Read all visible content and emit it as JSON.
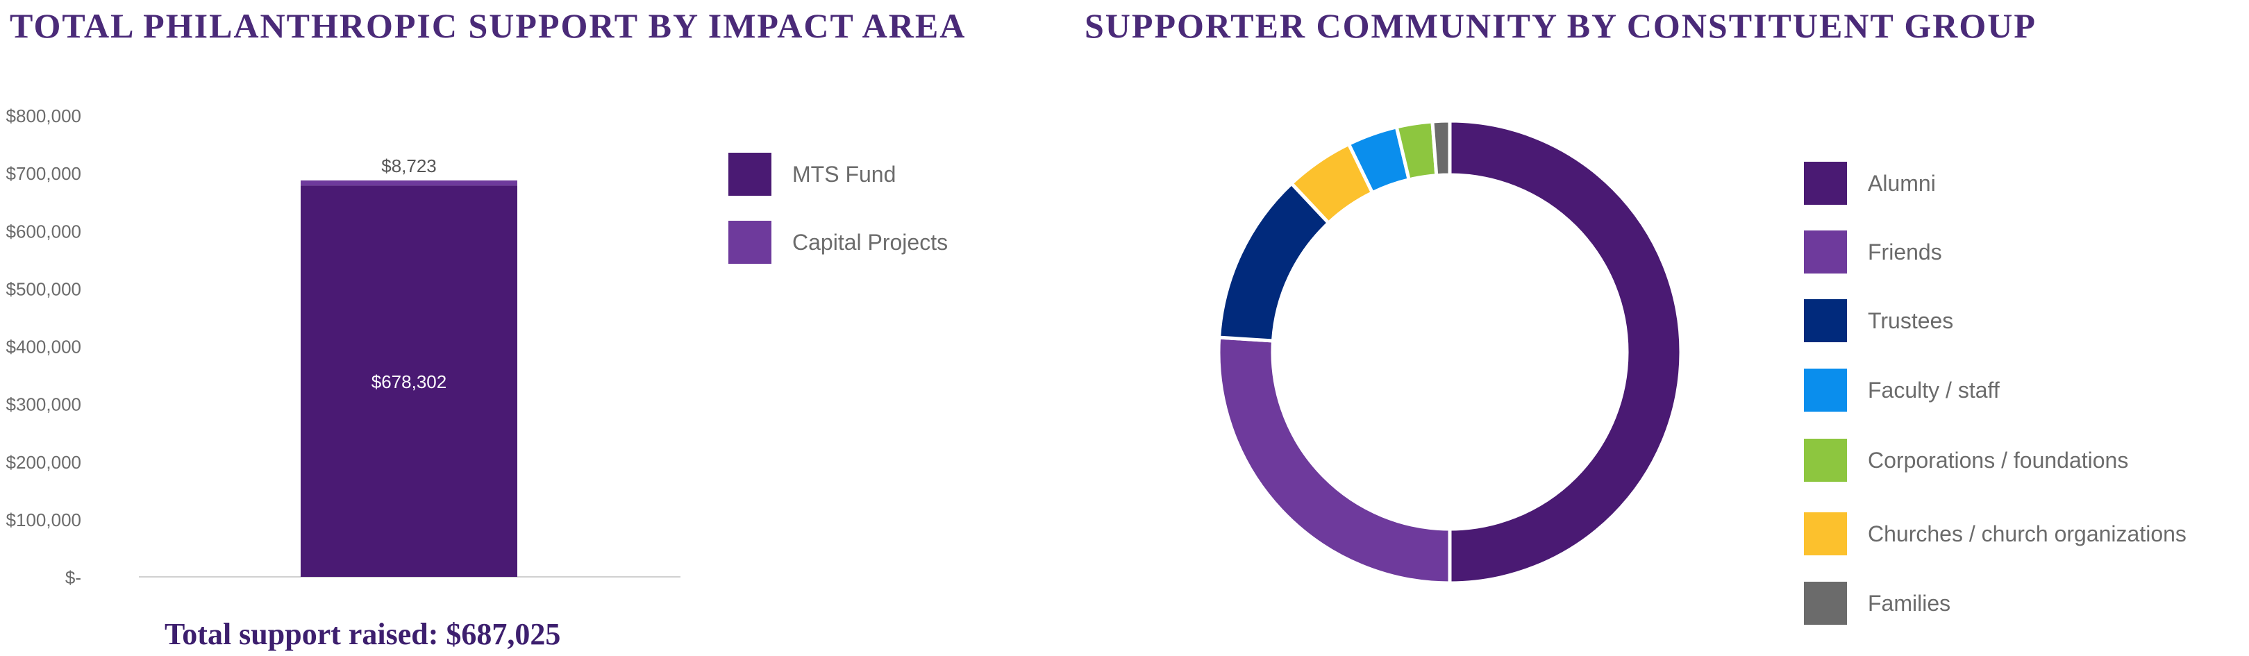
{
  "titles": {
    "left": "TOTAL PHILANTHROPIC SUPPORT BY IMPACT AREA",
    "right": "SUPPORTER COMMUNITY BY CONSTITUENT GROUP"
  },
  "total_text": "Total support raised: $687,025",
  "chart_data": [
    {
      "type": "bar",
      "stacked": true,
      "title": "TOTAL PHILANTHROPIC SUPPORT BY IMPACT AREA",
      "categories": [
        ""
      ],
      "ylim": [
        0,
        800000
      ],
      "yticks": [
        0,
        100000,
        200000,
        300000,
        400000,
        500000,
        600000,
        700000,
        800000
      ],
      "ytick_labels": [
        "$-",
        "$100,000",
        "$200,000",
        "$300,000",
        "$400,000",
        "$500,000",
        "$600,000",
        "$700,000",
        "$800,000"
      ],
      "series": [
        {
          "name": "MTS Fund",
          "values": [
            678302
          ],
          "label": "$678,302",
          "color": "#4a1a73"
        },
        {
          "name": "Capital Projects",
          "values": [
            8723
          ],
          "label": "$8,723",
          "color": "#6e3a9c"
        }
      ],
      "legend": "right",
      "grid": false
    },
    {
      "type": "pie",
      "donut": true,
      "title": "SUPPORTER COMMUNITY BY CONSTITUENT GROUP",
      "slices": [
        {
          "name": "Alumni",
          "value": 50.0,
          "color": "#4a1a73"
        },
        {
          "name": "Friends",
          "value": 26.0,
          "color": "#6e3a9c"
        },
        {
          "name": "Trustees",
          "value": 12.0,
          "color": "#012a7c"
        },
        {
          "name": "Faculty / staff",
          "value": 3.5,
          "color": "#0a8eed"
        },
        {
          "name": "Corporations / foundations",
          "value": 2.5,
          "color": "#8dc63f"
        },
        {
          "name": "Churches / church organizations",
          "value": 4.8,
          "color": "#fcc12d"
        },
        {
          "name": "Families",
          "value": 1.2,
          "color": "#6b6b6b"
        }
      ],
      "legend_order": [
        "Alumni",
        "Friends",
        "Trustees",
        "Faculty / staff",
        "Corporations / foundations",
        "Churches / church organizations",
        "Families"
      ],
      "slice_order": [
        "Alumni",
        "Friends",
        "Trustees",
        "Churches / church organizations",
        "Faculty / staff",
        "Corporations / foundations",
        "Families"
      ],
      "legend": "right"
    }
  ]
}
